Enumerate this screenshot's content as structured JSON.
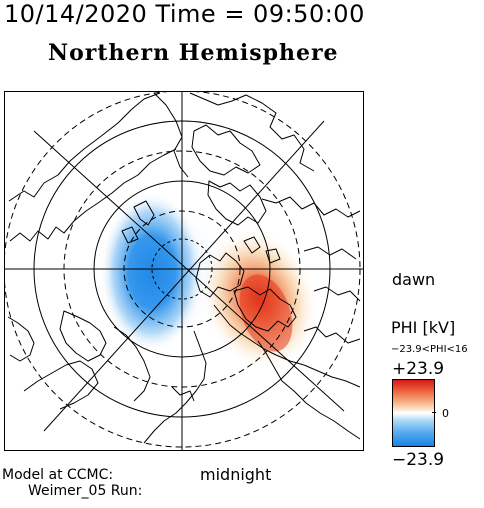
{
  "header": {
    "timestamp": "10/14/2020 Time = 09:50:00",
    "hemisphere": "Northern Hemisphere"
  },
  "map": {
    "orientation_labels": {
      "right": "dawn",
      "bottom": "midnight"
    },
    "negative_cell_color": "#1e88e8",
    "positive_cell_color": "#e02a1c",
    "grid_line_color": "#000000",
    "coastline_color": "#000000"
  },
  "colorbar": {
    "title": "PHI [kV]",
    "range_text": "−23.9<PHI<16",
    "max_label": "+23.9",
    "min_label": "−23.9",
    "zero_label": "0",
    "max_value": 23.9,
    "min_value": -23.9,
    "colors": [
      "#d61818",
      "#ee6a40",
      "#f9c59a",
      "#ffffff",
      "#a8d8f7",
      "#54aaef",
      "#1a82e8"
    ]
  },
  "footer": {
    "model_line1": "Model at CCMC:",
    "model_line2": "Weimer_05 Run:"
  }
}
